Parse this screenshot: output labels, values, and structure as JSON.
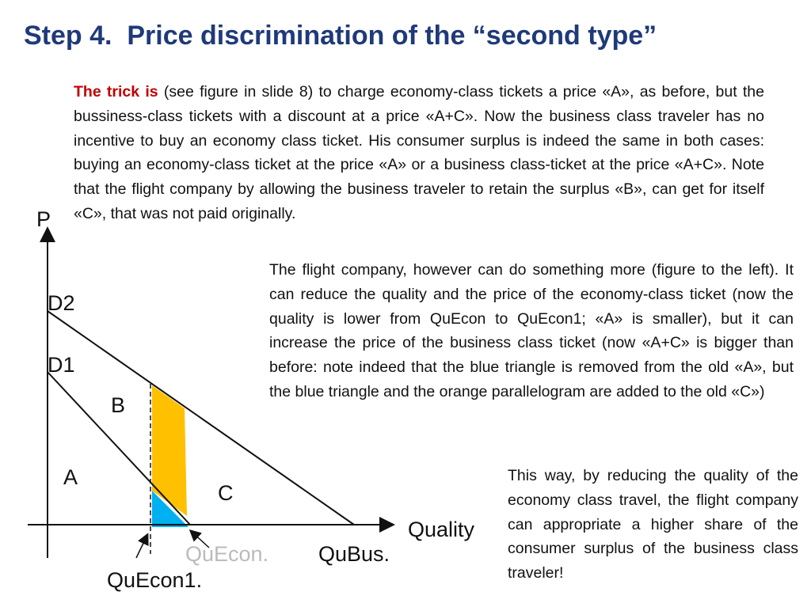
{
  "title": "Step 4.  Price discrimination of the “second type”",
  "paragraphs": [
    {
      "lead": "The trick is",
      "text": " (see figure in slide 8) to charge economy-class tickets a price «A», as before, but the bussiness-class tickets with a discount at a price «A+C». Now the business class traveler has no incentive to buy an economy class ticket. His consumer surplus is indeed the same in both cases: buying an economy-class ticket at the price «A» or a business class-ticket at the price «A+C». Note that the flight company by allowing the business traveler to retain the surplus «B», can get for itself «C», that was not paid originally."
    },
    {
      "text": "The flight company, however can do something more (figure to the left). It can reduce the quality and the price of the economy-class ticket (now the quality is lower from QuEcon to QuEcon1; «A»  is smaller), but it can increase the price of the business class ticket (now «A+C» is bigger than before: note indeed that the blue triangle is removed from the old «A», but the blue triangle and the orange parallelogram are added to the old «C»)"
    },
    {
      "text": "This way, by reducing the quality of the economy class travel, the flight company can appropriate a higher share of the consumer surplus of the business class traveler!"
    }
  ],
  "diagram": {
    "y_axis": "P",
    "x_axis": "Quality",
    "labels": {
      "d2": "D2",
      "d1": "D1",
      "b": "B",
      "a": "A",
      "c": "C",
      "quecon": "QuEcon.",
      "qubus": "QuBus.",
      "quecon1": "QuEcon1."
    }
  }
}
